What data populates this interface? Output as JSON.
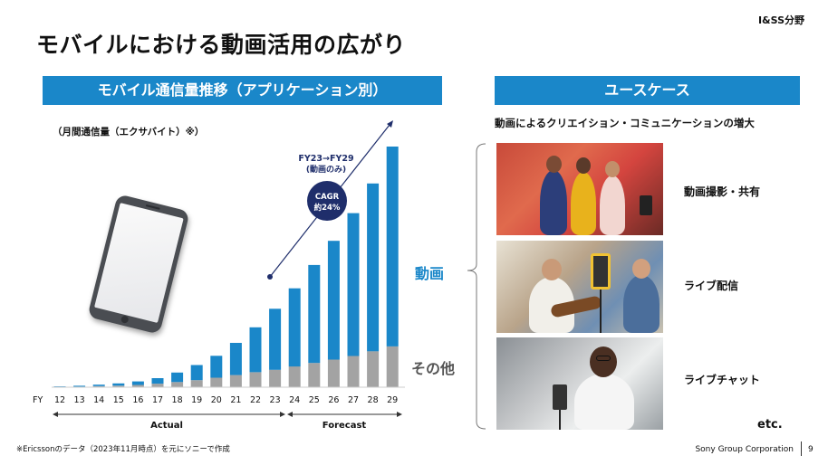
{
  "header": {
    "corner_tag": "I&SS分野",
    "title": "モバイルにおける動画活用の広がり"
  },
  "left_section": {
    "title": "モバイル通信量推移（アプリケーション別）",
    "unit_label": "（月間通信量（エクサバイト）※）"
  },
  "right_section": {
    "title": "ユースケース",
    "subtitle": "動画によるクリエイション・コミュニケーションの増大",
    "use_cases": [
      "動画撮影・共有",
      "ライブ配信",
      "ライブチャット"
    ],
    "etc": "etc."
  },
  "chart_data": {
    "type": "bar",
    "stacked": true,
    "x_axis_prefix": "FY",
    "categories": [
      "12",
      "13",
      "14",
      "15",
      "16",
      "17",
      "18",
      "19",
      "20",
      "21",
      "22",
      "23",
      "24",
      "25",
      "26",
      "27",
      "28",
      "29"
    ],
    "series": [
      {
        "name": "その他",
        "color": "#a3a3a3",
        "values": [
          0.3,
          0.5,
          0.9,
          1.3,
          2.0,
          3.1,
          4.5,
          6.2,
          8.3,
          10.6,
          13.1,
          15.2,
          18.2,
          21.2,
          24.2,
          27.3,
          31.5,
          35.7
        ]
      },
      {
        "name": "動画",
        "color": "#1a87c9",
        "values": [
          0.4,
          0.8,
          1.3,
          2.0,
          3.1,
          4.8,
          8.3,
          13.2,
          19.2,
          28.2,
          39.3,
          53.5,
          68.4,
          85.8,
          104.0,
          125.1,
          146.9,
          175.0
        ]
      }
    ],
    "periods": [
      "Actual",
      "Forecast"
    ],
    "annotation": {
      "label_line1": "FY23→FY29",
      "label_line2": "(動画のみ)",
      "badge_line1": "CAGR",
      "badge_line2": "約24%"
    }
  },
  "footer": {
    "footnote": "※Ericssonのデータ（2023年11月時点）を元にソニーで作成",
    "company": "Sony Group Corporation",
    "page": "9"
  }
}
